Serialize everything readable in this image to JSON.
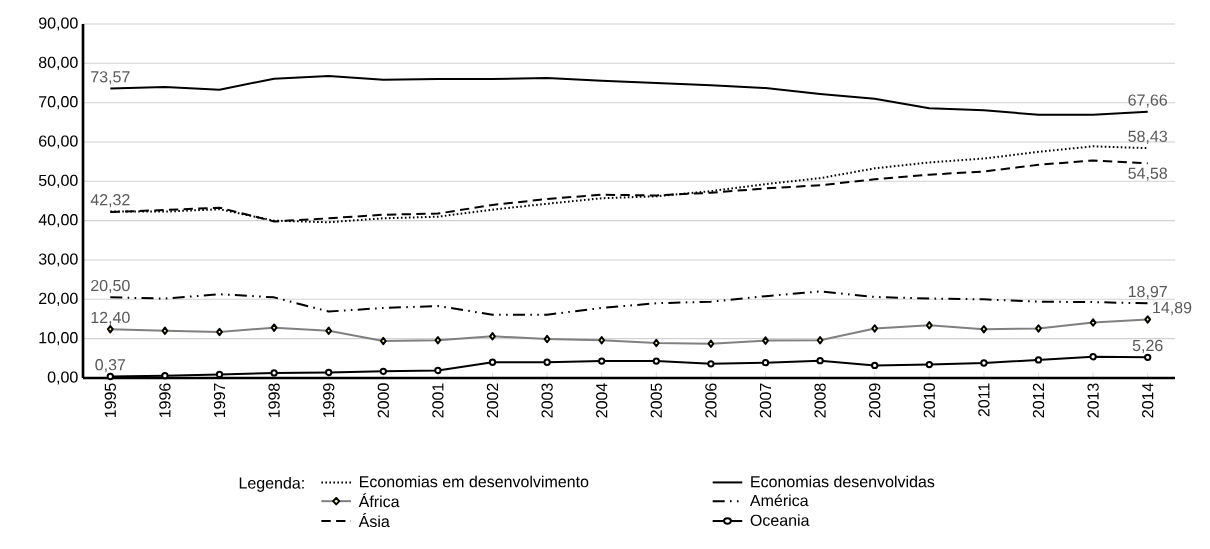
{
  "chart_data": {
    "type": "line",
    "categories": [
      "1995",
      "1996",
      "1997",
      "1998",
      "1999",
      "2000",
      "2001",
      "2002",
      "2003",
      "2004",
      "2005",
      "2006",
      "2007",
      "2008",
      "2009",
      "2010",
      "2011",
      "2012",
      "2013",
      "2014"
    ],
    "ylim": [
      0,
      90
    ],
    "yticks": [
      {
        "value": 0,
        "label": "0,00"
      },
      {
        "value": 10,
        "label": "10,00"
      },
      {
        "value": 20,
        "label": "20,00"
      },
      {
        "value": 30,
        "label": "30,00"
      },
      {
        "value": 40,
        "label": "40,00"
      },
      {
        "value": 50,
        "label": "50,00"
      },
      {
        "value": 60,
        "label": "60,00"
      },
      {
        "value": 70,
        "label": "70,00"
      },
      {
        "value": 80,
        "label": "80,00"
      },
      {
        "value": 90,
        "label": "90,00"
      }
    ],
    "grid": "y",
    "legend": "bottom",
    "legend_title": "Legenda:",
    "series": [
      {
        "name": "Economias em desenvolvimento",
        "color": "#000000",
        "line_style": "dotted",
        "marker": "none",
        "values": [
          42.32,
          42.3,
          42.9,
          40.0,
          39.6,
          40.6,
          41.0,
          42.8,
          44.3,
          45.7,
          46.2,
          47.5,
          49.3,
          50.8,
          53.3,
          54.8,
          55.8,
          57.5,
          58.9,
          58.43
        ],
        "value_labels": [
          "42,32",
          null,
          null,
          null,
          null,
          null,
          null,
          null,
          null,
          null,
          null,
          null,
          null,
          null,
          null,
          null,
          null,
          null,
          null,
          "58,43"
        ]
      },
      {
        "name": "Economias desenvolvidas",
        "color": "#000000",
        "line_style": "solid",
        "marker": "none",
        "values": [
          73.57,
          74.0,
          73.3,
          76.1,
          76.8,
          75.8,
          76.0,
          76.0,
          76.3,
          75.6,
          75.0,
          74.4,
          73.7,
          72.2,
          71.0,
          68.6,
          68.1,
          66.9,
          66.9,
          67.66
        ],
        "value_labels": [
          "73,57",
          null,
          null,
          null,
          null,
          null,
          null,
          null,
          null,
          null,
          null,
          null,
          null,
          null,
          null,
          null,
          null,
          null,
          null,
          "67,66"
        ]
      },
      {
        "name": "África",
        "color": "#808080",
        "line_style": "solid",
        "marker": "diamond",
        "values": [
          12.4,
          12.0,
          11.7,
          12.8,
          12.0,
          9.4,
          9.6,
          10.6,
          9.9,
          9.6,
          8.9,
          8.7,
          9.5,
          9.6,
          12.6,
          13.4,
          12.4,
          12.6,
          14.1,
          14.89
        ],
        "value_labels": [
          "12,40",
          null,
          null,
          null,
          null,
          null,
          null,
          null,
          null,
          null,
          null,
          null,
          null,
          null,
          null,
          null,
          null,
          null,
          null,
          "14,89"
        ]
      },
      {
        "name": "América",
        "color": "#000000",
        "line_style": "dashdotdotted",
        "marker": "none",
        "values": [
          20.5,
          20.2,
          21.3,
          20.5,
          16.9,
          17.8,
          18.3,
          16.1,
          16.1,
          17.8,
          19.0,
          19.4,
          20.8,
          22.0,
          20.6,
          20.2,
          20.0,
          19.4,
          19.3,
          18.97
        ],
        "value_labels": [
          "20,50",
          null,
          null,
          null,
          null,
          null,
          null,
          null,
          null,
          null,
          null,
          null,
          null,
          null,
          null,
          null,
          null,
          null,
          null,
          "18,97"
        ]
      },
      {
        "name": "Ásia",
        "color": "#000000",
        "line_style": "dashed",
        "marker": "none",
        "values": [
          42.2,
          42.7,
          43.3,
          39.8,
          40.6,
          41.5,
          41.8,
          44.0,
          45.5,
          46.6,
          46.4,
          47.1,
          48.2,
          49.0,
          50.5,
          51.7,
          52.5,
          54.2,
          55.3,
          54.58
        ],
        "value_labels": [
          null,
          null,
          null,
          null,
          null,
          null,
          null,
          null,
          null,
          null,
          null,
          null,
          null,
          null,
          null,
          null,
          null,
          null,
          null,
          "54,58"
        ]
      },
      {
        "name": "Oceania",
        "color": "#000000",
        "line_style": "solid",
        "marker": "circle",
        "values": [
          0.37,
          0.6,
          0.9,
          1.3,
          1.4,
          1.7,
          1.9,
          4.0,
          4.0,
          4.3,
          4.3,
          3.6,
          3.9,
          4.4,
          3.2,
          3.4,
          3.8,
          4.6,
          5.4,
          5.26
        ],
        "value_labels": [
          "0,37",
          null,
          null,
          null,
          null,
          null,
          null,
          null,
          null,
          null,
          null,
          null,
          null,
          null,
          null,
          null,
          null,
          null,
          null,
          "5,26"
        ]
      }
    ]
  }
}
